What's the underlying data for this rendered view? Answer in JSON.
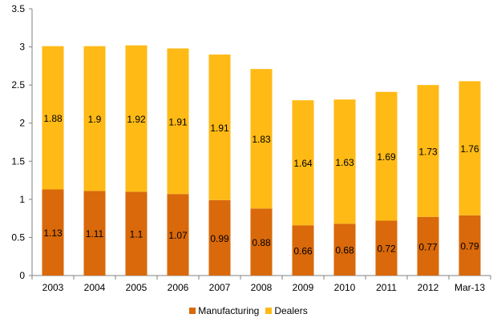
{
  "chart_data": {
    "type": "bar",
    "stacked": true,
    "categories": [
      "2003",
      "2004",
      "2005",
      "2006",
      "2007",
      "2008",
      "2009",
      "2010",
      "2011",
      "2012",
      "Mar-13"
    ],
    "series": [
      {
        "name": "Manufacturing",
        "color": "#D9690B",
        "values": [
          1.13,
          1.11,
          1.1,
          1.07,
          0.99,
          0.88,
          0.66,
          0.68,
          0.72,
          0.77,
          0.79
        ]
      },
      {
        "name": "Dealers",
        "color": "#FFBA16",
        "values": [
          1.88,
          1.9,
          1.92,
          1.91,
          1.91,
          1.83,
          1.64,
          1.63,
          1.69,
          1.73,
          1.76
        ]
      }
    ],
    "ylim": [
      0,
      3.5
    ],
    "yticks": [
      "0",
      "0.5",
      "1",
      "1.5",
      "2",
      "2.5",
      "3",
      "3.5"
    ],
    "grid": false,
    "legend": "bottom"
  }
}
